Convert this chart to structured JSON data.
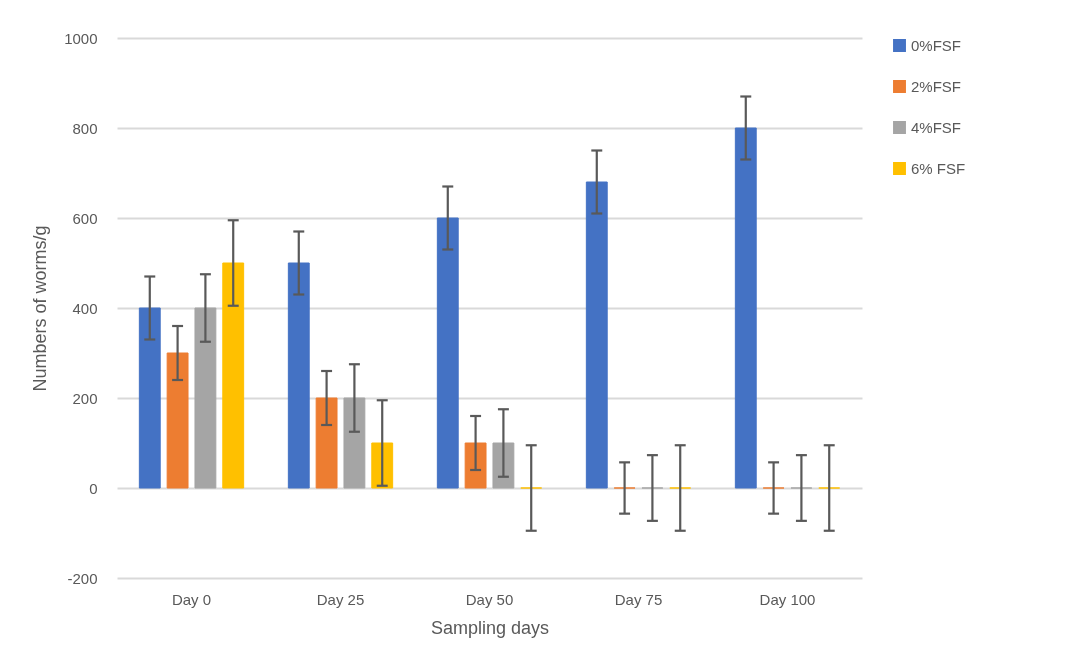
{
  "chart_data": {
    "type": "bar",
    "xlabel": "Sampling days",
    "ylabel": "Numbers of worms/g",
    "categories": [
      "Day 0",
      "Day 25",
      "Day 50",
      "Day 75",
      "Day 100"
    ],
    "series": [
      {
        "name": "0%FSF",
        "color": "#4472c4",
        "values": [
          400,
          500,
          600,
          680,
          800
        ],
        "errors": [
          70,
          70,
          70,
          70,
          70
        ]
      },
      {
        "name": "2%FSF",
        "color": "#ed7d31",
        "values": [
          300,
          200,
          100,
          0,
          0
        ],
        "errors": [
          60,
          60,
          60,
          57,
          57
        ]
      },
      {
        "name": "4%FSF",
        "color": "#a5a5a5",
        "values": [
          400,
          200,
          100,
          0,
          0
        ],
        "errors": [
          75,
          75,
          75,
          73,
          73
        ]
      },
      {
        "name": "6% FSF",
        "color": "#ffc000",
        "values": [
          500,
          100,
          0,
          0,
          0
        ],
        "errors": [
          95,
          95,
          95,
          95,
          95
        ]
      }
    ],
    "ylim": [
      -200,
      1000
    ],
    "yticks": [
      -200,
      0,
      200,
      400,
      600,
      800,
      1000
    ],
    "grid": "y",
    "legend": "right"
  }
}
